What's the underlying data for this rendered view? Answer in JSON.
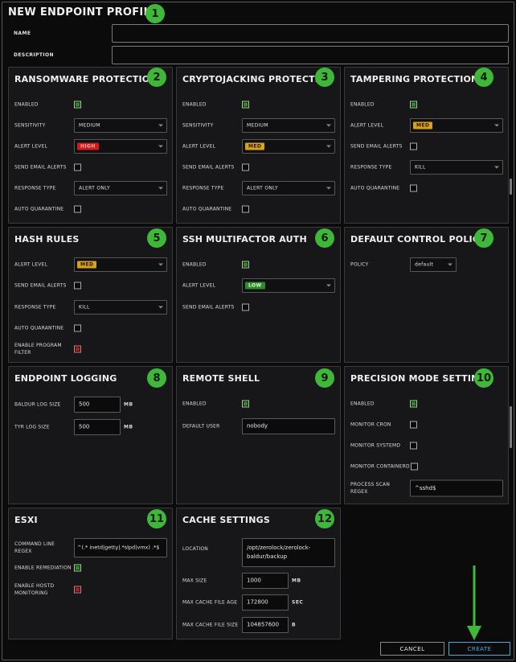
{
  "title": "NEW ENDPOINT PROFILE",
  "badges": [
    "1",
    "2",
    "3",
    "4",
    "5",
    "6",
    "7",
    "8",
    "9",
    "10",
    "11",
    "12"
  ],
  "name_label": "NAME",
  "description_label": "DESCRIPTION",
  "ransomware": {
    "title": "RANSOMWARE PROTECTION",
    "enabled_label": "ENABLED",
    "sensitivity_label": "SENSITIVITY",
    "sensitivity": "MEDIUM",
    "alert_label": "ALERT LEVEL",
    "alert": "HIGH",
    "email_label": "SEND EMAIL ALERTS",
    "response_label": "RESPONSE TYPE",
    "response": "ALERT ONLY",
    "quarantine_label": "AUTO QUARANTINE"
  },
  "crypto": {
    "title": "CRYPTOJACKING PROTECTION",
    "enabled_label": "ENABLED",
    "sensitivity_label": "SENSITIVITY",
    "sensitivity": "MEDIUM",
    "alert_label": "ALERT LEVEL",
    "alert": "MED",
    "email_label": "SEND EMAIL ALERTS",
    "response_label": "RESPONSE TYPE",
    "response": "ALERT ONLY",
    "quarantine_label": "AUTO QUARANTINE"
  },
  "tamper": {
    "title": "TAMPERING PROTECTION",
    "enabled_label": "ENABLED",
    "alert_label": "ALERT LEVEL",
    "alert": "MED",
    "email_label": "SEND EMAIL ALERTS",
    "response_label": "RESPONSE TYPE",
    "response": "KILL",
    "quarantine_label": "AUTO QUARANTINE"
  },
  "hash": {
    "title": "HASH RULES",
    "alert_label": "ALERT LEVEL",
    "alert": "MED",
    "email_label": "SEND EMAIL ALERTS",
    "response_label": "RESPONSE TYPE",
    "response": "KILL",
    "quarantine_label": "AUTO QUARANTINE",
    "filter_label": "ENABLE PROGRAM FILTER"
  },
  "ssh": {
    "title": "SSH MULTIFACTOR AUTH",
    "enabled_label": "ENABLED",
    "alert_label": "ALERT LEVEL",
    "alert": "LOW",
    "email_label": "SEND EMAIL ALERTS"
  },
  "dcp": {
    "title": "DEFAULT CONTROL POLICY",
    "policy_label": "POLICY",
    "policy": "default"
  },
  "logging": {
    "title": "ENDPOINT LOGGING",
    "baldur_label": "BALDUR LOG SIZE",
    "baldur": "500",
    "tyr_label": "TYR LOG SIZE",
    "tyr": "500",
    "unit": "MB"
  },
  "shell": {
    "title": "REMOTE SHELL",
    "enabled_label": "ENABLED",
    "user_label": "DEFAULT USER",
    "user": "nobody"
  },
  "precision": {
    "title": "PRECISION MODE SETTINGS",
    "enabled_label": "ENABLED",
    "cron_label": "MONITOR CRON",
    "systemd_label": "MONITOR SYSTEMD",
    "containerd_label": "MONITOR CONTAINERD",
    "regex_label": "PROCESS SCAN REGEX",
    "regex": "^sshd$"
  },
  "esxi": {
    "title": "ESXI",
    "cmd_label": "COMMAND LINE REGEX",
    "cmd": "^(.* inetd|getty|.*slpd|vmx) .*$",
    "remed_label": "ENABLE REMEDIATION",
    "hostd_label": "ENABLE HOSTD MONITORING"
  },
  "cache": {
    "title": "CACHE SETTINGS",
    "location_label": "LOCATION",
    "location": "/opt/zerolock/zerolock-baldur/backup",
    "size_label": "MAX SIZE",
    "size": "1000",
    "size_unit": "MB",
    "age_label": "MAX CACHE FILE AGE",
    "age": "172800",
    "age_unit": "SEC",
    "filesize_label": "MAX CACHE FILE SIZE",
    "filesize": "104857600",
    "filesize_unit": "B"
  },
  "buttons": {
    "cancel": "CANCEL",
    "create": "CREATE"
  },
  "colors": {
    "badge": "#3fb83a",
    "arrow": "#3fb83a",
    "high": "#d11a1a",
    "med": "#d4a21c",
    "low": "#2f8a2a",
    "create_text": "#4aa8d8"
  }
}
